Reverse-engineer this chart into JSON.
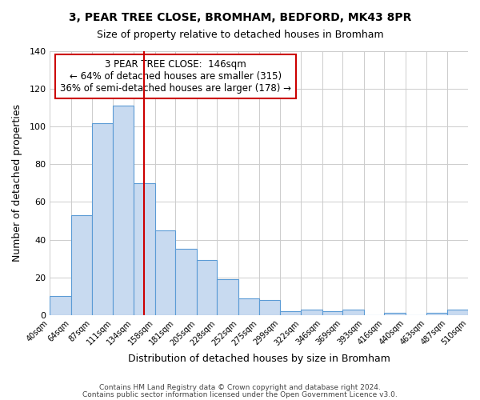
{
  "title": "3, PEAR TREE CLOSE, BROMHAM, BEDFORD, MK43 8PR",
  "subtitle": "Size of property relative to detached houses in Bromham",
  "xlabel": "Distribution of detached houses by size in Bromham",
  "ylabel": "Number of detached properties",
  "bin_labels": [
    "40sqm",
    "64sqm",
    "87sqm",
    "111sqm",
    "134sqm",
    "158sqm",
    "181sqm",
    "205sqm",
    "228sqm",
    "252sqm",
    "275sqm",
    "299sqm",
    "322sqm",
    "346sqm",
    "369sqm",
    "393sqm",
    "416sqm",
    "440sqm",
    "463sqm",
    "487sqm",
    "510sqm"
  ],
  "bin_edges": [
    40,
    64,
    87,
    111,
    134,
    158,
    181,
    205,
    228,
    252,
    275,
    299,
    322,
    346,
    369,
    393,
    416,
    440,
    463,
    487,
    510
  ],
  "bar_heights": [
    10,
    53,
    102,
    111,
    70,
    45,
    35,
    29,
    19,
    9,
    8,
    2,
    3,
    2,
    3,
    0,
    1,
    0,
    1,
    3
  ],
  "bar_color": "#c8daf0",
  "bar_edge_color": "#5b9bd5",
  "grid_color": "#cccccc",
  "background_color": "#ffffff",
  "annotation_box_text": "3 PEAR TREE CLOSE:  146sqm\n← 64% of detached houses are smaller (315)\n36% of semi-detached houses are larger (178) →",
  "annotation_box_color": "#ffffff",
  "annotation_box_edge_color": "#cc0000",
  "vline_x": 146,
  "vline_color": "#cc0000",
  "ylim": [
    0,
    140
  ],
  "yticks": [
    0,
    20,
    40,
    60,
    80,
    100,
    120,
    140
  ],
  "footer_line1": "Contains HM Land Registry data © Crown copyright and database right 2024.",
  "footer_line2": "Contains public sector information licensed under the Open Government Licence v3.0."
}
